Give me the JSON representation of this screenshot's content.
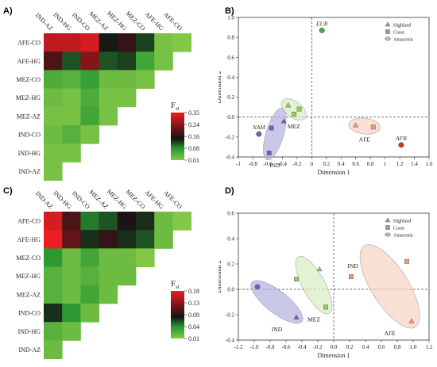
{
  "panels": {
    "A": {
      "letter": "A)"
    },
    "B": {
      "letter": "B)"
    },
    "C": {
      "letter": "C)"
    },
    "D": {
      "letter": "D)"
    }
  },
  "chart_data": [
    {
      "panel": "A",
      "type": "heatmap",
      "col_labels": [
        "IND-AZ",
        "IND-HG",
        "IND-CO",
        "MEZ-AZ",
        "MEZ-HG",
        "MEZ-CO",
        "AFE-HG",
        "AFE-CO"
      ],
      "row_labels": [
        "AFE-CO",
        "AFE-HG",
        "MEZ-CO",
        "MEZ-HG",
        "MEZ-AZ",
        "IND-CO",
        "IND-HG",
        "IND-AZ"
      ],
      "values": [
        [
          0.31,
          0.31,
          0.33,
          0.16,
          0.19,
          0.14,
          0.02,
          0.01
        ],
        [
          0.21,
          0.13,
          0.26,
          0.13,
          0.14,
          0.07,
          0.02
        ],
        [
          0.06,
          0.05,
          0.08,
          0.03,
          0.03,
          0.02
        ],
        [
          0.03,
          0.02,
          0.06,
          0.02,
          0.02
        ],
        [
          0.02,
          0.02,
          0.07,
          0.02
        ],
        [
          0.03,
          0.05,
          0.02
        ],
        [
          0.02,
          0.02
        ],
        [
          0.02
        ]
      ],
      "legend": {
        "title": "F",
        "subscript": "st",
        "ticks": [
          "0.35",
          "0.24",
          "0.16",
          "0.08",
          "0.01"
        ],
        "min": 0.01,
        "max": 0.35
      }
    },
    {
      "panel": "B",
      "type": "scatter",
      "xlabel": "Dimension 1",
      "ylabel": "Dimension 2",
      "xlim": [
        -1,
        1.6
      ],
      "ylim": [
        -0.4,
        1.0
      ],
      "xticks": [
        "-1",
        "-0.8",
        "-0.6",
        "-0.4",
        "-0.2",
        "0",
        "0.2",
        "0.4",
        "0.6",
        "0.8",
        "1",
        "1.2",
        "1.4",
        "1.6"
      ],
      "yticks": [
        "-0.4",
        "-0.2",
        "0.0",
        "0.2",
        "0.4",
        "0.6",
        "0.8",
        "1.0"
      ],
      "legend": [
        "Highland",
        "Coast",
        "Amazonia"
      ],
      "groups": [
        "IND",
        "MEZ",
        "AFE"
      ],
      "references": [
        {
          "label": "EUR",
          "x": 0.14,
          "y": 0.87
        },
        {
          "label": "NAM",
          "x": -0.72,
          "y": -0.17
        },
        {
          "label": "AFR",
          "x": 1.22,
          "y": -0.28
        }
      ],
      "points": [
        {
          "group": "IND",
          "shape": "triangle",
          "x": -0.38,
          "y": -0.04
        },
        {
          "group": "IND",
          "shape": "square",
          "x": -0.55,
          "y": -0.11
        },
        {
          "group": "IND",
          "shape": "square",
          "x": -0.58,
          "y": -0.36
        },
        {
          "group": "MEZ",
          "shape": "triangle",
          "x": -0.32,
          "y": 0.12
        },
        {
          "group": "MEZ",
          "shape": "square",
          "x": -0.17,
          "y": 0.08
        },
        {
          "group": "MEZ",
          "shape": "square",
          "x": -0.24,
          "y": 0.03
        },
        {
          "group": "AFE",
          "shape": "triangle",
          "x": 0.6,
          "y": -0.08
        },
        {
          "group": "AFE",
          "shape": "square",
          "x": 0.84,
          "y": -0.1
        }
      ]
    },
    {
      "panel": "C",
      "type": "heatmap",
      "col_labels": [
        "IND-AZ",
        "IND-HG",
        "IND-CO",
        "MEZ-AZ",
        "MEZ-HG",
        "MEZ-CO",
        "AFE-HG",
        "AFE-CO"
      ],
      "row_labels": [
        "AFE-CO",
        "AFE-HG",
        "MEZ-CO",
        "MEZ-HG",
        "MEZ-AZ",
        "IND-CO",
        "IND-HG",
        "IND-AZ"
      ],
      "values": [
        [
          0.17,
          0.11,
          0.06,
          0.07,
          0.09,
          0.08,
          0.02,
          0.01
        ],
        [
          0.18,
          0.12,
          0.08,
          0.1,
          0.08,
          0.07,
          0.02
        ],
        [
          0.05,
          0.02,
          0.04,
          0.02,
          0.02,
          0.01
        ],
        [
          0.03,
          0.02,
          0.03,
          0.02,
          0.02
        ],
        [
          0.03,
          0.02,
          0.04,
          0.02
        ],
        [
          0.08,
          0.05,
          0.02
        ],
        [
          0.03,
          0.02
        ],
        [
          0.02
        ]
      ],
      "legend": {
        "title": "F",
        "subscript": "st",
        "ticks": [
          "0.18",
          "0.13",
          "0.09",
          "0.04",
          "0.01"
        ],
        "min": 0.01,
        "max": 0.18
      }
    },
    {
      "panel": "D",
      "type": "scatter",
      "xlabel": "Dimension 1",
      "ylabel": "Dimension 2",
      "xlim": [
        -1.2,
        1.2
      ],
      "ylim": [
        -0.4,
        0.6
      ],
      "xticks": [
        "-1.2",
        "-1.0",
        "-0.8",
        "-0.6",
        "-0.4",
        "-0.2",
        "0.0",
        "0.2",
        "0.4",
        "0.6",
        "0.8",
        "1.0",
        "1.2"
      ],
      "yticks": [
        "-0.4",
        "-0.2",
        "0.0",
        "0.2",
        "0.4",
        "0.6"
      ],
      "legend": [
        "Highland",
        "Coast",
        "Amazonia"
      ],
      "groups": [
        "IND",
        "MEZ",
        "AFE"
      ],
      "references": [],
      "extra_labels": [
        {
          "label": "IND",
          "x": 0.24,
          "y": 0.17
        }
      ],
      "points": [
        {
          "group": "IND",
          "shape": "circle",
          "x": -0.96,
          "y": 0.02
        },
        {
          "group": "IND",
          "shape": "triangle",
          "x": -0.47,
          "y": -0.22
        },
        {
          "group": "MEZ",
          "shape": "square",
          "x": -0.47,
          "y": 0.08
        },
        {
          "group": "MEZ",
          "shape": "triangle",
          "x": -0.18,
          "y": 0.16
        },
        {
          "group": "MEZ",
          "shape": "square",
          "x": -0.1,
          "y": -0.14
        },
        {
          "group": "AFE",
          "shape": "square",
          "x": 0.22,
          "y": 0.1
        },
        {
          "group": "AFE",
          "shape": "square",
          "x": 0.92,
          "y": 0.22
        },
        {
          "group": "AFE",
          "shape": "triangle",
          "x": 0.98,
          "y": -0.25
        }
      ]
    }
  ]
}
